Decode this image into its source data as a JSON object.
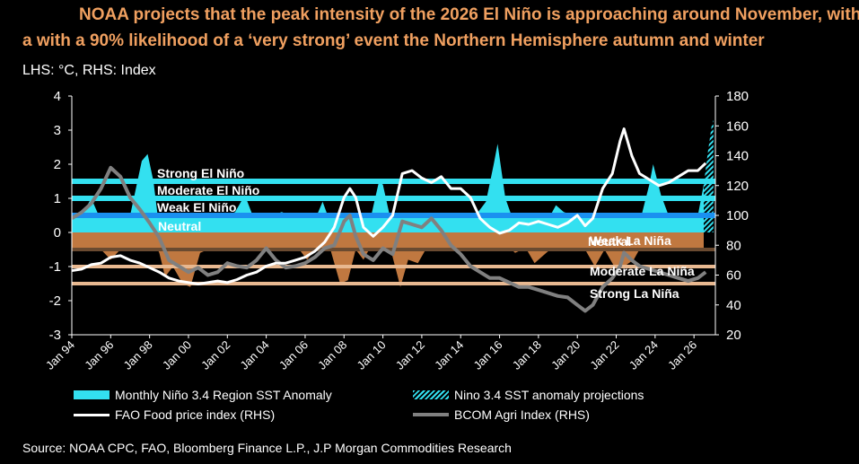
{
  "title_line1": "NOAA projects that the peak intensity of the 2026 El Niño is approaching around November, with",
  "title_line2": "a with a 90% likelihood of a ‘very strong’ event the Northern Hemisphere autumn and winter",
  "units": "LHS: °C, RHS: Index",
  "source": "Source: NOAA CPC, FAO, Bloomberg Finance L.P., J.P Morgan Commodities Research",
  "colors": {
    "title": "#f0a060",
    "sst_pos": "#33e0f0",
    "sst_neg": "#c07840",
    "sst_neutral": "#3a3a3a",
    "fao": "#ffffff",
    "bcom": "#808080",
    "el_nino_lines": "#33e0f0",
    "la_nina_lines": "#e8b890",
    "neutral_line": "#6a4a30"
  },
  "chart_data": {
    "type": "area",
    "x_tick_labels": [
      "Jan 94",
      "Jan 96",
      "Jan 98",
      "Jan 00",
      "Jan 02",
      "Jan 04",
      "Jan 06",
      "Jan 08",
      "Jan 10",
      "Jan 12",
      "Jan 14",
      "Jan 16",
      "Jan 18",
      "Jan 20",
      "Jan 22",
      "Jan 24",
      "Jan 26"
    ],
    "xlim": [
      1994.0,
      2027.1
    ],
    "y_left": {
      "ylim": [
        -3,
        4
      ],
      "ticks": [
        -3,
        -2,
        -1,
        0,
        1,
        2,
        3,
        4
      ]
    },
    "y_right": {
      "ylim": [
        20,
        180
      ],
      "ticks": [
        20,
        40,
        60,
        80,
        100,
        120,
        140,
        160,
        180
      ]
    },
    "thresholds": [
      {
        "label": "Strong El Niño",
        "value": 1.5
      },
      {
        "label": "Moderate El Niño",
        "value": 1.0
      },
      {
        "label": "Weak El Niño",
        "value": 0.5
      },
      {
        "label": "Neutral",
        "value": 0.0
      },
      {
        "label": "Neutral",
        "value": -0.5
      },
      {
        "label": "Weak La Niña",
        "value": -0.5
      },
      {
        "label": "Moderate La Niña",
        "value": -1.0
      },
      {
        "label": "Strong La Niña",
        "value": -1.5
      }
    ],
    "legend": [
      "Monthly Niño 3.4 Region SST Anomaly",
      "Nino 3.4 SST anomaly projections",
      "FAO Food price index (RHS)",
      "BCOM Agri Index (RHS)"
    ],
    "series": [
      {
        "name": "Monthly Niño 3.4 Region SST Anomaly",
        "axis": "left",
        "x": [
          1994.0,
          1994.5,
          1995.0,
          1995.5,
          1996.0,
          1996.5,
          1997.0,
          1997.3,
          1997.6,
          1997.9,
          1998.2,
          1998.5,
          1998.8,
          1999.2,
          1999.7,
          2000.1,
          2000.6,
          2001.0,
          2001.6,
          2002.0,
          2002.4,
          2002.9,
          2003.3,
          2003.8,
          2004.3,
          2004.8,
          2005.2,
          2005.7,
          2006.1,
          2006.6,
          2006.9,
          2007.3,
          2007.8,
          2008.2,
          2008.6,
          2009.0,
          2009.4,
          2009.8,
          2010.0,
          2010.4,
          2010.9,
          2011.3,
          2011.8,
          2012.2,
          2012.7,
          2013.2,
          2013.8,
          2014.4,
          2014.9,
          2015.3,
          2015.7,
          2015.9,
          2016.3,
          2016.8,
          2017.3,
          2017.8,
          2018.4,
          2018.9,
          2019.3,
          2019.8,
          2020.3,
          2020.9,
          2021.4,
          2021.9,
          2022.4,
          2022.9,
          2023.3,
          2023.7,
          2023.9,
          2024.3,
          2024.8,
          2025.3,
          2025.8,
          2026.2,
          2026.5
        ],
        "values": [
          0.1,
          0.2,
          1.0,
          -0.3,
          -0.8,
          -0.3,
          0.2,
          1.3,
          2.1,
          2.3,
          1.5,
          -0.6,
          -1.3,
          -1.0,
          -1.5,
          -1.6,
          -0.6,
          -0.4,
          -0.1,
          0.2,
          0.6,
          1.1,
          0.2,
          0.2,
          0.3,
          0.6,
          0.5,
          -0.3,
          -0.8,
          0.2,
          0.9,
          -0.5,
          -1.5,
          -1.4,
          -0.5,
          -0.8,
          0.3,
          1.5,
          1.4,
          -0.2,
          -1.6,
          -0.8,
          -0.9,
          -0.2,
          0.2,
          -0.3,
          -0.3,
          0.0,
          0.6,
          0.9,
          2.0,
          2.6,
          1.0,
          -0.6,
          0.2,
          -0.9,
          -0.6,
          0.8,
          0.6,
          0.4,
          0.2,
          -1.0,
          -0.5,
          -1.0,
          -1.0,
          -0.8,
          0.3,
          1.4,
          2.0,
          1.1,
          -0.3,
          -0.5,
          -0.3,
          0.2,
          1.4
        ]
      },
      {
        "name": "Nino 3.4 SST anomaly projections",
        "axis": "left",
        "x": [
          2026.5,
          2026.7,
          2026.9,
          2027.0
        ],
        "values": [
          1.4,
          2.3,
          3.1,
          3.3
        ]
      },
      {
        "name": "FAO Food price index (RHS)",
        "axis": "right",
        "x": [
          1994.0,
          1994.5,
          1995.0,
          1995.5,
          1996.0,
          1996.5,
          1997.0,
          1997.5,
          1998.0,
          1998.5,
          1999.0,
          1999.5,
          2000.0,
          2000.5,
          2001.0,
          2001.5,
          2002.0,
          2002.5,
          2003.0,
          2003.5,
          2004.0,
          2004.5,
          2005.0,
          2005.5,
          2006.0,
          2006.5,
          2007.0,
          2007.5,
          2008.0,
          2008.3,
          2008.6,
          2009.0,
          2009.5,
          2010.0,
          2010.5,
          2011.0,
          2011.5,
          2012.0,
          2012.5,
          2013.0,
          2013.5,
          2014.0,
          2014.5,
          2015.0,
          2015.5,
          2016.0,
          2016.5,
          2017.0,
          2017.5,
          2018.0,
          2018.5,
          2019.0,
          2019.5,
          2020.0,
          2020.4,
          2020.8,
          2021.3,
          2021.8,
          2022.2,
          2022.4,
          2022.8,
          2023.2,
          2023.7,
          2024.2,
          2024.7,
          2025.2,
          2025.7,
          2026.2,
          2026.6
        ],
        "values": [
          63,
          64,
          67,
          68,
          72,
          73,
          70,
          68,
          65,
          62,
          58,
          56,
          55,
          54,
          55,
          56,
          55,
          57,
          60,
          62,
          66,
          68,
          68,
          70,
          72,
          76,
          82,
          92,
          112,
          118,
          112,
          92,
          86,
          92,
          100,
          128,
          130,
          125,
          122,
          126,
          118,
          118,
          112,
          98,
          92,
          88,
          90,
          95,
          94,
          96,
          94,
          92,
          95,
          100,
          93,
          98,
          118,
          128,
          150,
          158,
          140,
          128,
          124,
          120,
          122,
          126,
          130,
          130,
          135
        ]
      },
      {
        "name": "BCOM Agri Index (RHS)",
        "axis": "right",
        "x": [
          1994.0,
          1994.5,
          1995.0,
          1995.5,
          1996.0,
          1996.5,
          1997.0,
          1997.5,
          1998.0,
          1998.5,
          1999.0,
          1999.5,
          2000.0,
          2000.5,
          2001.0,
          2001.5,
          2002.0,
          2002.5,
          2003.0,
          2003.5,
          2004.0,
          2004.5,
          2005.0,
          2005.5,
          2006.0,
          2006.5,
          2007.0,
          2007.5,
          2008.0,
          2008.3,
          2008.6,
          2009.0,
          2009.5,
          2010.0,
          2010.5,
          2011.0,
          2011.5,
          2012.0,
          2012.5,
          2013.0,
          2013.5,
          2014.0,
          2014.5,
          2015.0,
          2015.5,
          2016.0,
          2016.5,
          2017.0,
          2017.5,
          2018.0,
          2018.5,
          2019.0,
          2019.5,
          2020.0,
          2020.4,
          2020.8,
          2021.3,
          2021.8,
          2022.2,
          2022.4,
          2022.8,
          2023.2,
          2023.7,
          2024.2,
          2024.7,
          2025.2,
          2025.7,
          2026.2,
          2026.6
        ],
        "values": [
          98,
          102,
          108,
          118,
          132,
          126,
          112,
          104,
          95,
          85,
          70,
          66,
          62,
          65,
          60,
          62,
          68,
          66,
          65,
          70,
          78,
          70,
          65,
          66,
          68,
          72,
          78,
          80,
          96,
          100,
          86,
          74,
          70,
          78,
          74,
          96,
          94,
          92,
          98,
          90,
          80,
          74,
          66,
          62,
          58,
          58,
          55,
          52,
          52,
          50,
          48,
          46,
          45,
          40,
          36,
          40,
          52,
          58,
          66,
          75,
          70,
          66,
          64,
          62,
          60,
          58,
          56,
          58,
          62
        ]
      }
    ]
  }
}
